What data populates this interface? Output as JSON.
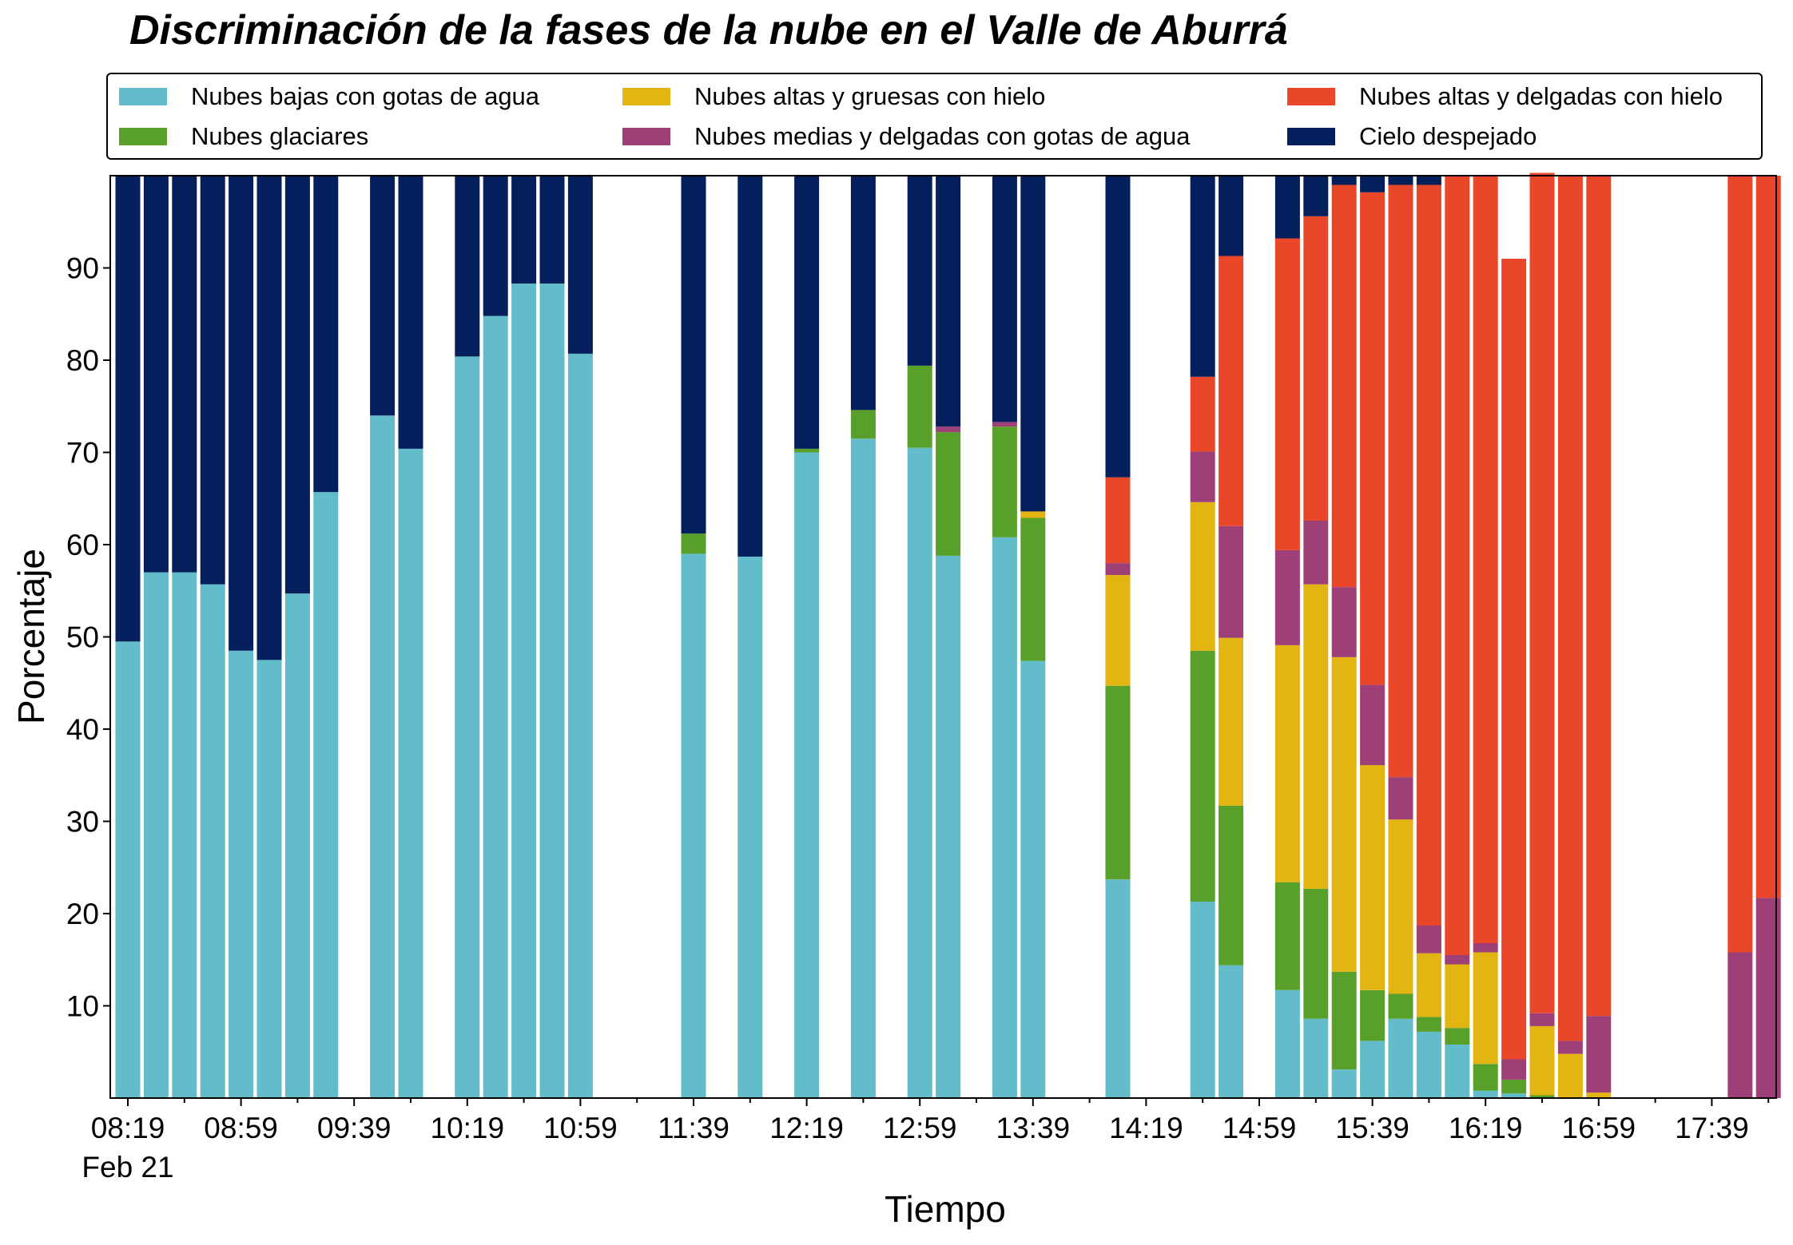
{
  "chart_data": {
    "type": "bar",
    "stacked": true,
    "title": "Discriminación de la fases de la nube en el Valle de Aburrá",
    "xlabel": "Tiempo",
    "ylabel": "Porcentaje",
    "ylim": [
      0,
      100
    ],
    "yticks": [
      10,
      20,
      30,
      40,
      50,
      60,
      70,
      80,
      90
    ],
    "xticks": [
      "08:19",
      "08:59",
      "09:39",
      "10:19",
      "10:59",
      "11:39",
      "12:19",
      "12:59",
      "13:39",
      "14:19",
      "14:59",
      "15:39",
      "16:19",
      "16:59",
      "17:39"
    ],
    "xdate_label": "Feb 21",
    "x_start": "08:19",
    "x_end": "17:59",
    "bar_interval_minutes": 10,
    "legend_position": "top, above plot, 3 columns",
    "grid": false,
    "times": [
      "08:19",
      "08:29",
      "08:39",
      "08:49",
      "08:59",
      "09:09",
      "09:19",
      "09:29",
      "09:49",
      "09:59",
      "10:19",
      "10:29",
      "10:39",
      "10:49",
      "10:59",
      "11:39",
      "11:59",
      "12:19",
      "12:39",
      "12:59",
      "13:09",
      "13:29",
      "13:39",
      "14:09",
      "14:39",
      "14:49",
      "15:09",
      "15:19",
      "15:29",
      "15:39",
      "15:49",
      "15:59",
      "16:09",
      "16:19",
      "16:29",
      "16:39",
      "16:49",
      "16:59",
      "17:09",
      "17:19",
      "17:49",
      "17:59"
    ],
    "series": [
      {
        "name": "Nubes bajas con gotas de agua",
        "color": "#63bcc9",
        "values": [
          49.5,
          57,
          57,
          55.7,
          48.5,
          47.5,
          54.7,
          65.7,
          74,
          70.4,
          80.4,
          84.8,
          88.3,
          88.3,
          80.7,
          59,
          58.7,
          70,
          71.5,
          70.5,
          58.8,
          60.8,
          47.4,
          23.7,
          21.3,
          14.4,
          11.7,
          8.6,
          3.1,
          6.2,
          8.6,
          7.2,
          5.8,
          0.8,
          0.5,
          0,
          0,
          0,
          0,
          0,
          0,
          0
        ]
      },
      {
        "name": "Nubes glaciares",
        "color": "#58a02a",
        "values": [
          0,
          0,
          0,
          0,
          0,
          0,
          0,
          0,
          0,
          0,
          0,
          0,
          0,
          0,
          0,
          2.2,
          0,
          0.4,
          3.1,
          8.9,
          13.4,
          12,
          15.5,
          21,
          27.2,
          17.3,
          11.7,
          14.1,
          10.6,
          5.5,
          2.7,
          1.6,
          1.8,
          2.9,
          1.5,
          0.3,
          0,
          0,
          0,
          0,
          0,
          0
        ]
      },
      {
        "name": "Nubes altas y gruesas con hielo",
        "color": "#e3b513",
        "values": [
          0,
          0,
          0,
          0,
          0,
          0,
          0,
          0,
          0,
          0,
          0,
          0,
          0,
          0,
          0,
          0,
          0,
          0,
          0,
          0,
          0,
          0,
          0.7,
          12,
          16.1,
          18.2,
          25.7,
          33,
          34.1,
          24.4,
          18.9,
          6.9,
          6.9,
          12.1,
          0,
          7.5,
          4.8,
          0.6,
          0,
          0,
          0,
          0
        ]
      },
      {
        "name": "Nubes medias y delgadas con gotas de agua",
        "color": "#9f3f78",
        "values": [
          0,
          0,
          0,
          0,
          0,
          0,
          0,
          0,
          0,
          0,
          0,
          0,
          0,
          0,
          0,
          0,
          0,
          0,
          0,
          0,
          0.6,
          0.5,
          0,
          1.3,
          5.5,
          12.1,
          10.3,
          6.9,
          7.6,
          8.7,
          4.6,
          3,
          1,
          1,
          2.2,
          1.4,
          1.4,
          8.3,
          0,
          0,
          15.8,
          21.7
        ]
      },
      {
        "name": "Nubes altas y delgadas con hielo",
        "color": "#ea472a",
        "values": [
          0,
          0,
          0,
          0,
          0,
          0,
          0,
          0,
          0,
          0,
          0,
          0,
          0,
          0,
          0,
          0,
          0,
          0,
          0,
          0,
          0,
          0,
          0,
          9.3,
          8.1,
          29.3,
          33.8,
          33,
          43.6,
          53.4,
          64.2,
          80.3,
          84.5,
          83.2,
          86.8,
          91.1,
          93.8,
          91.1,
          0,
          0,
          84.2,
          78.3
        ]
      },
      {
        "name": "Cielo despejado",
        "color": "#03205c",
        "values": [
          50.5,
          43,
          43,
          44.3,
          51.5,
          52.5,
          45.3,
          34.3,
          26,
          29.6,
          19.6,
          15.2,
          11.7,
          11.7,
          19.3,
          38.8,
          41.3,
          29.6,
          25.4,
          20.6,
          27.2,
          26.7,
          36.4,
          32.7,
          21.8,
          8.7,
          6.8,
          4.4,
          1,
          1.8,
          1,
          1,
          0,
          0,
          0,
          0,
          0,
          0,
          0,
          0,
          0,
          0
        ]
      }
    ]
  }
}
